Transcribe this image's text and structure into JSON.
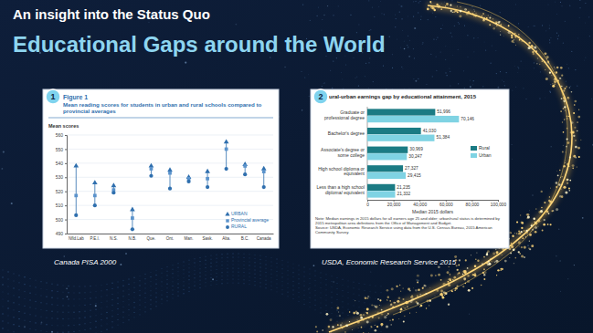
{
  "slide": {
    "kicker": "An insight into the Status Quo",
    "title": "Educational Gaps around the World"
  },
  "panels": [
    {
      "badge": "1",
      "caption": "Canada PISA 2000"
    },
    {
      "badge": "2",
      "caption": "USDA, Economic Research Service 2015"
    }
  ],
  "chart_data": [
    {
      "type": "dot",
      "title": "Figure 1",
      "subtitle": "Mean reading scores for students in urban and rural schools compared to provincial averages",
      "y_label": "Mean scores",
      "categories": [
        "Nfld.Lab",
        "P.E.I.",
        "N.S.",
        "N.B.",
        "Que.",
        "Ont.",
        "Man.",
        "Sask.",
        "Alta.",
        "B.C.",
        "Canada"
      ],
      "series": [
        {
          "name": "URBAN",
          "color": "#2f6fae",
          "marker": "triangle",
          "values": [
            538,
            526,
            524,
            507,
            538,
            535,
            530,
            534,
            555,
            539,
            536
          ]
        },
        {
          "name": "Provincial average",
          "color": "#5b93cc",
          "marker": "square",
          "values": [
            517,
            517,
            521,
            501,
            536,
            533,
            529,
            529,
            550,
            538,
            534
          ]
        },
        {
          "name": "RURAL",
          "color": "#2f6fae",
          "marker": "circle",
          "values": [
            503,
            510,
            519,
            493,
            531,
            522,
            527,
            523,
            536,
            532,
            523
          ]
        }
      ],
      "ylim": [
        490,
        560
      ],
      "yticks": [
        490,
        500,
        510,
        520,
        530,
        540,
        550,
        560
      ],
      "grid": true,
      "legend": "lower right"
    },
    {
      "type": "bar",
      "title": "ural-urban earnings gap by educational attainment, 2015",
      "orientation": "horizontal",
      "categories": [
        "Graduate or professional degree",
        "Bachelor's degree",
        "Associate's degree or some college",
        "High school diploma or equivalent",
        "Less than a high school diploma/ equivalent"
      ],
      "series": [
        {
          "name": "Rural",
          "color": "#1b7b84",
          "values": [
            51996,
            41030,
            30969,
            27327,
            21235
          ],
          "value_labels": [
            "51,996",
            "41,030",
            "30,969",
            "27,327",
            "21,235"
          ]
        },
        {
          "name": "Urban",
          "color": "#7fd3e3",
          "values": [
            70146,
            51384,
            30247,
            29415,
            21332
          ],
          "value_labels": [
            "70,146",
            "51,384",
            "30,247",
            "29,415",
            "21,332"
          ]
        }
      ],
      "xlim": [
        0,
        100000
      ],
      "xticks": [
        0,
        {
          "value": 20000,
          "label": "20,000"
        },
        {
          "value": 40000,
          "label": "40,000"
        },
        {
          "value": 60000,
          "label": "60,000"
        },
        {
          "value": 80000,
          "label": "80,000"
        },
        {
          "value": 100000,
          "label": "100,000"
        }
      ],
      "x_label": "Median 2015 dollars",
      "data_labels": true,
      "grid": false,
      "legend": "right",
      "notes": [
        "Note: Median earnings in 2015 dollars for all earners age 25 and older; urban/rural status is determined by 2015 metropolitan area definitions from the Office of Management and Budget.",
        "Source: USDA, Economic Research Service using data from the U.S. Census Bureau, 2015 American Community Survey."
      ]
    }
  ]
}
